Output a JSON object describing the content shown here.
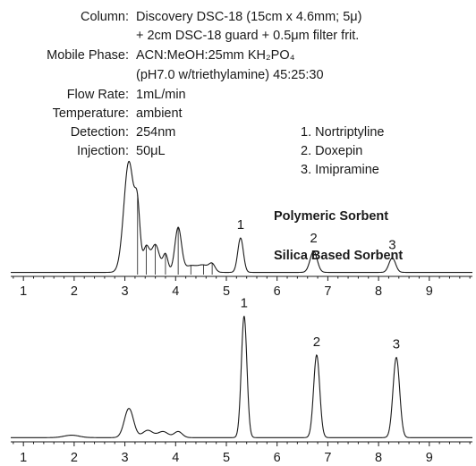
{
  "conditions": [
    {
      "label": "Column:",
      "lines": [
        "Discovery DSC-18 (15cm x 4.6mm; 5μ)",
        "+ 2cm DSC-18 guard + 0.5μm filter frit."
      ]
    },
    {
      "label": "Mobile Phase:",
      "lines": [
        "ACN:MeOH:25mm KH₂PO₄",
        "(pH7.0 w/triethylamine) 45:25:30"
      ]
    },
    {
      "label": "Flow Rate:",
      "lines": [
        "1mL/min"
      ]
    },
    {
      "label": "Temperature:",
      "lines": [
        "ambient"
      ]
    },
    {
      "label": "Detection:",
      "lines": [
        "254nm"
      ]
    },
    {
      "label": "Injection:",
      "lines": [
        "50μL"
      ]
    }
  ],
  "compounds": [
    "1. Nortriptyline",
    "2. Doxepin",
    "3. Imipramine"
  ],
  "colors": {
    "trace": "#1a1a1a",
    "background": "#ffffff"
  },
  "chart_data": [
    {
      "type": "line",
      "title": "Polymeric Sorbent",
      "xlabel": "",
      "ylabel": "",
      "xlim": [
        0.75,
        9.85
      ],
      "ylim": [
        0,
        1
      ],
      "x_ticks": [
        "1",
        "2",
        "3",
        "4",
        "5",
        "6",
        "7",
        "8",
        "9"
      ],
      "grid": false,
      "baseline": 0.02,
      "peaks": [
        {
          "x": 3.08,
          "height": 1.0,
          "width": 0.1
        },
        {
          "x": 3.25,
          "height": 0.46,
          "width": 0.05
        },
        {
          "x": 3.42,
          "height": 0.22,
          "width": 0.06
        },
        {
          "x": 3.6,
          "height": 0.25,
          "width": 0.08
        },
        {
          "x": 3.8,
          "height": 0.16,
          "width": 0.05
        },
        {
          "x": 4.05,
          "height": 0.4,
          "width": 0.065
        },
        {
          "x": 4.3,
          "height": 0.06,
          "width": 0.12
        },
        {
          "x": 4.55,
          "height": 0.06,
          "width": 0.1
        },
        {
          "x": 4.72,
          "height": 0.07,
          "width": 0.06
        },
        {
          "x": 5.28,
          "height": 0.31,
          "width": 0.055
        },
        {
          "x": 6.72,
          "height": 0.19,
          "width": 0.07
        },
        {
          "x": 8.27,
          "height": 0.13,
          "width": 0.065
        }
      ],
      "annotations": [
        {
          "text": "1",
          "x": 5.28
        },
        {
          "text": "2",
          "x": 6.72
        },
        {
          "text": "3",
          "x": 8.27
        }
      ]
    },
    {
      "type": "line",
      "title": "Silica Based Sorbent",
      "xlabel": "",
      "ylabel": "",
      "xlim": [
        0.75,
        9.85
      ],
      "ylim": [
        0,
        1
      ],
      "x_ticks": [
        "1",
        "2",
        "3",
        "4",
        "5",
        "6",
        "7",
        "8",
        "9"
      ],
      "grid": false,
      "baseline": 0.02,
      "peaks": [
        {
          "x": 1.95,
          "height": 0.02,
          "width": 0.15
        },
        {
          "x": 3.08,
          "height": 0.24,
          "width": 0.09
        },
        {
          "x": 3.45,
          "height": 0.06,
          "width": 0.1
        },
        {
          "x": 3.75,
          "height": 0.05,
          "width": 0.1
        },
        {
          "x": 4.05,
          "height": 0.05,
          "width": 0.08
        },
        {
          "x": 5.35,
          "height": 1.0,
          "width": 0.055
        },
        {
          "x": 6.78,
          "height": 0.68,
          "width": 0.06
        },
        {
          "x": 8.35,
          "height": 0.66,
          "width": 0.065
        }
      ],
      "annotations": [
        {
          "text": "1",
          "x": 5.35
        },
        {
          "text": "2",
          "x": 6.78
        },
        {
          "text": "3",
          "x": 8.35
        }
      ]
    }
  ]
}
